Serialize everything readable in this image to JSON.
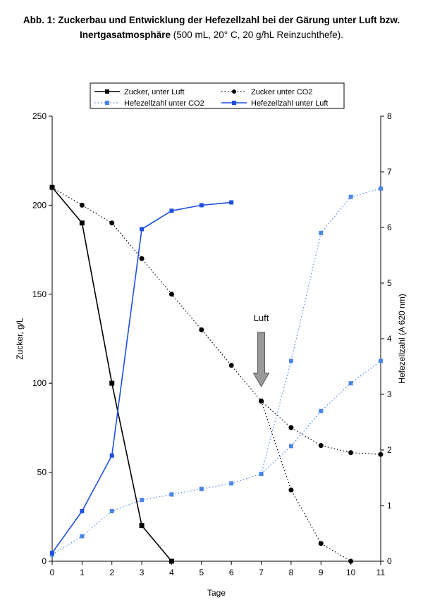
{
  "title": {
    "bold": "Abb. 1: Zuckerbau und Entwicklung der Hefezellzahl bei der Gärung unter Luft bzw. Inertgasatmosphäre",
    "normal": " (500 mL, 20° C, 20 g/hL Reinzuchthefe)."
  },
  "colors": {
    "black": "#000000",
    "blue_strong": "#1f4fe0",
    "blue_light": "#4a86e8",
    "arrow": "#999999"
  },
  "annotation": {
    "label": "Luft",
    "x": 7
  },
  "chart_data": {
    "type": "line",
    "xlabel": "Tage",
    "ylabel": "Zucker, g/L",
    "y2label": "Hefezellzahl (A 620 nm)",
    "xlim": [
      0,
      11
    ],
    "ylim": [
      0,
      250
    ],
    "y2lim": [
      0,
      8
    ],
    "xticks": [
      "0",
      "1",
      "2",
      "3",
      "4",
      "5",
      "6",
      "7",
      "8",
      "9",
      "10",
      "11"
    ],
    "yticks": [
      "0",
      "50",
      "100",
      "150",
      "200",
      "250"
    ],
    "y2ticks": [
      "0",
      "1",
      "2",
      "3",
      "4",
      "5",
      "6",
      "7",
      "8"
    ],
    "grid": false,
    "legend_position": "top",
    "series": [
      {
        "name": "Zucker, unter Luft",
        "axis": "left",
        "style": "solid",
        "marker": "square",
        "color": "#000000",
        "x": [
          0,
          1,
          2,
          3,
          4
        ],
        "values": [
          210,
          190,
          100,
          20,
          0
        ]
      },
      {
        "name": "Zucker unter CO2",
        "axis": "left",
        "style": "dotted",
        "marker": "circle",
        "color": "#000000",
        "x": [
          0,
          1,
          2,
          3,
          4,
          5,
          6,
          7,
          8,
          9,
          10,
          11
        ],
        "values": [
          210,
          200,
          190,
          170,
          150,
          130,
          110,
          90,
          75,
          65,
          61,
          60
        ]
      },
      {
        "name": "Zucker unter CO2 (nach Luft)",
        "axis": "left",
        "style": "dotted",
        "marker": "circle",
        "color": "#000000",
        "legend": false,
        "x": [
          7,
          8,
          9,
          10
        ],
        "values": [
          90,
          40,
          10,
          0
        ]
      },
      {
        "name": "Hefezellzahl unter CO2",
        "axis": "right",
        "style": "dotted",
        "marker": "square",
        "color": "#4a86e8",
        "x": [
          0,
          1,
          2,
          3,
          4,
          5,
          6,
          7,
          8,
          9,
          10,
          11
        ],
        "values": [
          0.12,
          0.45,
          0.9,
          1.1,
          1.2,
          1.3,
          1.4,
          1.57,
          2.07,
          2.7,
          3.2,
          3.6
        ]
      },
      {
        "name": "Hefezellzahl unter CO2 (nach Luft)",
        "axis": "right",
        "style": "dotted",
        "marker": "square",
        "color": "#4a86e8",
        "legend": false,
        "x": [
          7,
          8,
          9,
          10,
          11
        ],
        "values": [
          1.57,
          3.6,
          5.9,
          6.55,
          6.7
        ]
      },
      {
        "name": "Hefezellzahl unter Luft",
        "axis": "right",
        "style": "solid",
        "marker": "square",
        "color": "#1f4fe0",
        "x": [
          0,
          1,
          2,
          3,
          4,
          5,
          6
        ],
        "values": [
          0.15,
          0.9,
          1.9,
          5.97,
          6.3,
          6.4,
          6.45
        ]
      }
    ]
  }
}
